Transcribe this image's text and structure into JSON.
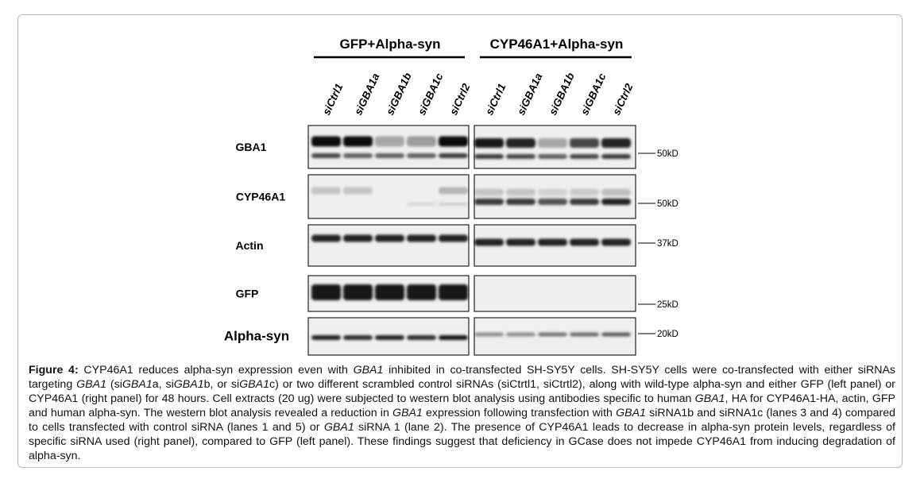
{
  "panels": [
    {
      "title": "GFP+Alpha-syn",
      "lanes": [
        "siCtrl1",
        "siGBA1a",
        "siGBA1b",
        "siGBA1c",
        "siCtrl2"
      ]
    },
    {
      "title": "CYP46A1+Alpha-syn",
      "lanes": [
        "siCtrl1",
        "siGBA1a",
        "siGBA1b",
        "siGBA1c",
        "siCtrl2"
      ]
    }
  ],
  "rows": [
    {
      "label": "GBA1",
      "marker": "50kD"
    },
    {
      "label": "CYP46A1",
      "marker": "50kD"
    },
    {
      "label": "Actin",
      "marker": "37kD"
    },
    {
      "label": "GFP",
      "marker": "25kD"
    },
    {
      "label": "Alpha-syn",
      "marker": "20kD"
    }
  ],
  "caption": {
    "label": "Figure 4:",
    "runs": [
      {
        "text": " CYP46A1 reduces alpha-syn expression even with "
      },
      {
        "text": "GBA1",
        "italic": true
      },
      {
        "text": " inhibited in co-transfected SH-SY5Y cells. SH-SY5Y cells were co-transfected with either siRNAs targeting "
      },
      {
        "text": "GBA1",
        "italic": true
      },
      {
        "text": " (si"
      },
      {
        "text": "GBA1",
        "italic": true
      },
      {
        "text": "a, si"
      },
      {
        "text": "GBA1",
        "italic": true
      },
      {
        "text": "b, or si"
      },
      {
        "text": "GBA1",
        "italic": true
      },
      {
        "text": "c) or two different scrambled control siRNAs (siCtrtl1, siCtrtl2), along with wild-type alpha-syn and either GFP (left panel) or CYP46A1 (right panel) for 48 hours. Cell extracts (20 ug) were subjected to western blot analysis using antibodies specific to human "
      },
      {
        "text": "GBA1",
        "italic": true
      },
      {
        "text": ", HA for CYP46A1-HA, actin, GFP and human alpha-syn. The western blot analysis revealed a reduction in "
      },
      {
        "text": "GBA1",
        "italic": true
      },
      {
        "text": " expression following transfection with "
      },
      {
        "text": "GBA1",
        "italic": true
      },
      {
        "text": " siRNA1b and siRNA1c (lanes 3 and 4) compared to cells transfected with control siRNA (lanes 1 and 5) or "
      },
      {
        "text": "GBA1",
        "italic": true
      },
      {
        "text": " siRNA 1 (lane 2). The presence of CYP46A1 leads to decrease in alpha-syn protein levels, regardless of specific siRNA used (right panel), compared to GFP (left panel). These findings suggest that deficiency in GCase does not impede CYP46A1 from inducing degradation of alpha-syn."
      }
    ]
  }
}
